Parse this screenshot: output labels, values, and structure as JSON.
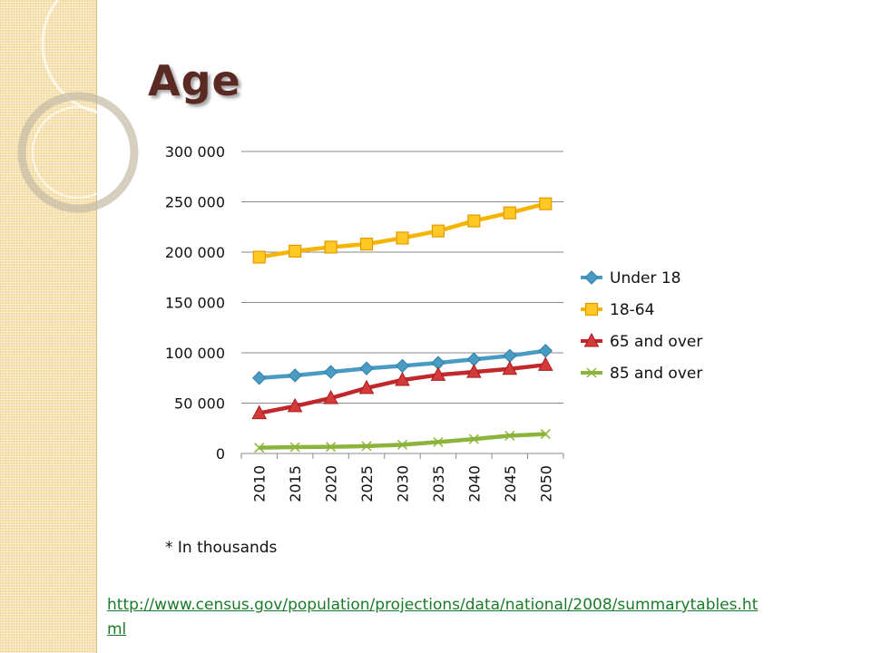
{
  "slide": {
    "title": "Age",
    "footnote": "* In thousands",
    "source_url": "http://www.census.gov/population/projections/data/national/2008/summarytables.html"
  },
  "chart_data": {
    "type": "line",
    "title": "",
    "xlabel": "",
    "ylabel": "",
    "categories": [
      "2010",
      "2015",
      "2020",
      "2025",
      "2030",
      "2035",
      "2040",
      "2045",
      "2050"
    ],
    "ylim": [
      0,
      300000
    ],
    "yticks": [
      0,
      50000,
      100000,
      150000,
      200000,
      250000,
      300000
    ],
    "ytick_labels": [
      "0",
      "50 000",
      "100 000",
      "150 000",
      "200 000",
      "250 000",
      "300 000"
    ],
    "grid": true,
    "legend_position": "right",
    "series": [
      {
        "name": "Under 18",
        "marker": "diamond",
        "color": "#4a9bc4",
        "markerFill": "#4a9bc4",
        "values": [
          75000,
          77500,
          81000,
          84500,
          87000,
          90000,
          93500,
          97000,
          102000
        ]
      },
      {
        "name": "18-64",
        "marker": "square",
        "color": "#f5b400",
        "markerFill": "#ffc824",
        "values": [
          195000,
          201000,
          205000,
          208000,
          214000,
          221000,
          231000,
          239000,
          248000
        ]
      },
      {
        "name": "65 and over",
        "marker": "triangle",
        "color": "#c0282c",
        "markerFill": "#d43a3a",
        "values": [
          40000,
          47000,
          55000,
          65000,
          73000,
          78000,
          81000,
          84000,
          88000
        ]
      },
      {
        "name": "85 and over",
        "marker": "x",
        "color": "#8cb43c",
        "markerFill": "#8cb43c",
        "values": [
          5700,
          6300,
          6600,
          7300,
          8700,
          11400,
          14300,
          17700,
          19300
        ]
      }
    ]
  }
}
